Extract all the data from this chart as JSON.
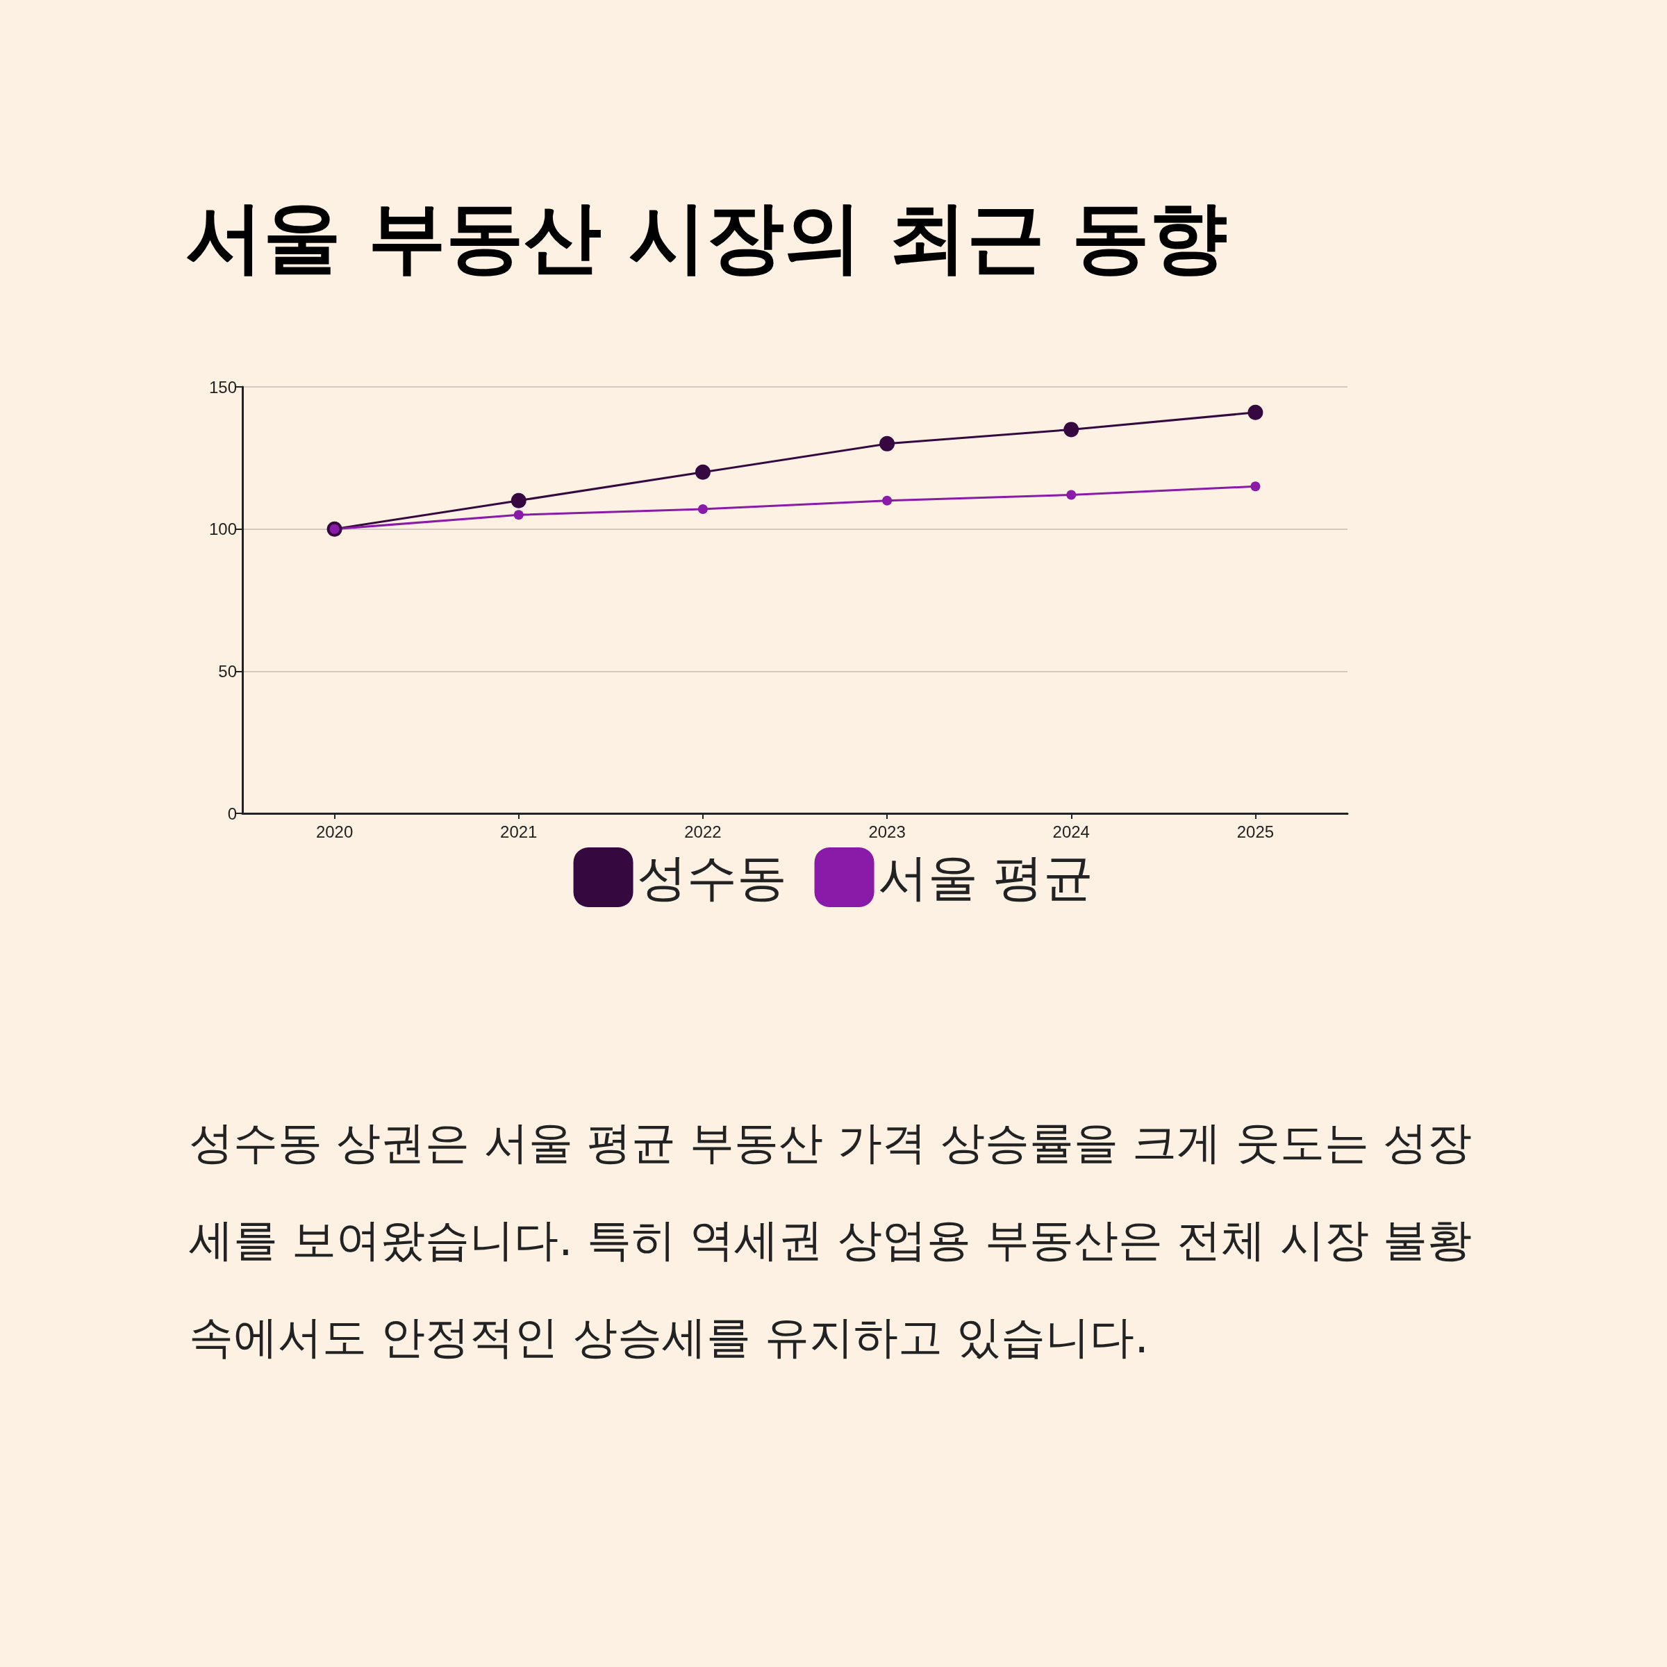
{
  "chart_data": {
    "type": "line",
    "title": "서울 부동산 시장의 최근 동향",
    "categories": [
      "2020",
      "2021",
      "2022",
      "2023",
      "2024",
      "2025"
    ],
    "series": [
      {
        "name": "성수동",
        "color": "#35093f",
        "values": [
          100,
          110,
          120,
          130,
          135,
          141
        ]
      },
      {
        "name": "서울 평균",
        "color": "#8a1aa8",
        "values": [
          100,
          105,
          107,
          110,
          112,
          115
        ]
      }
    ],
    "ylim": [
      0,
      150
    ],
    "yticks": [
      0,
      50,
      100,
      150
    ],
    "grid": "y",
    "legend": "bottom",
    "marker": "circle",
    "line_style": "solid",
    "annotations": [
      "성수동 상권은 서울 평균 부동산 가격 상승률을 크게 웃도는 성장세를 보여왔습니다. 특히 역세권 상업용 부동산은 전체 시장 불황 속에서도 안정적인 상승세를 유지하고 있습니다."
    ]
  }
}
